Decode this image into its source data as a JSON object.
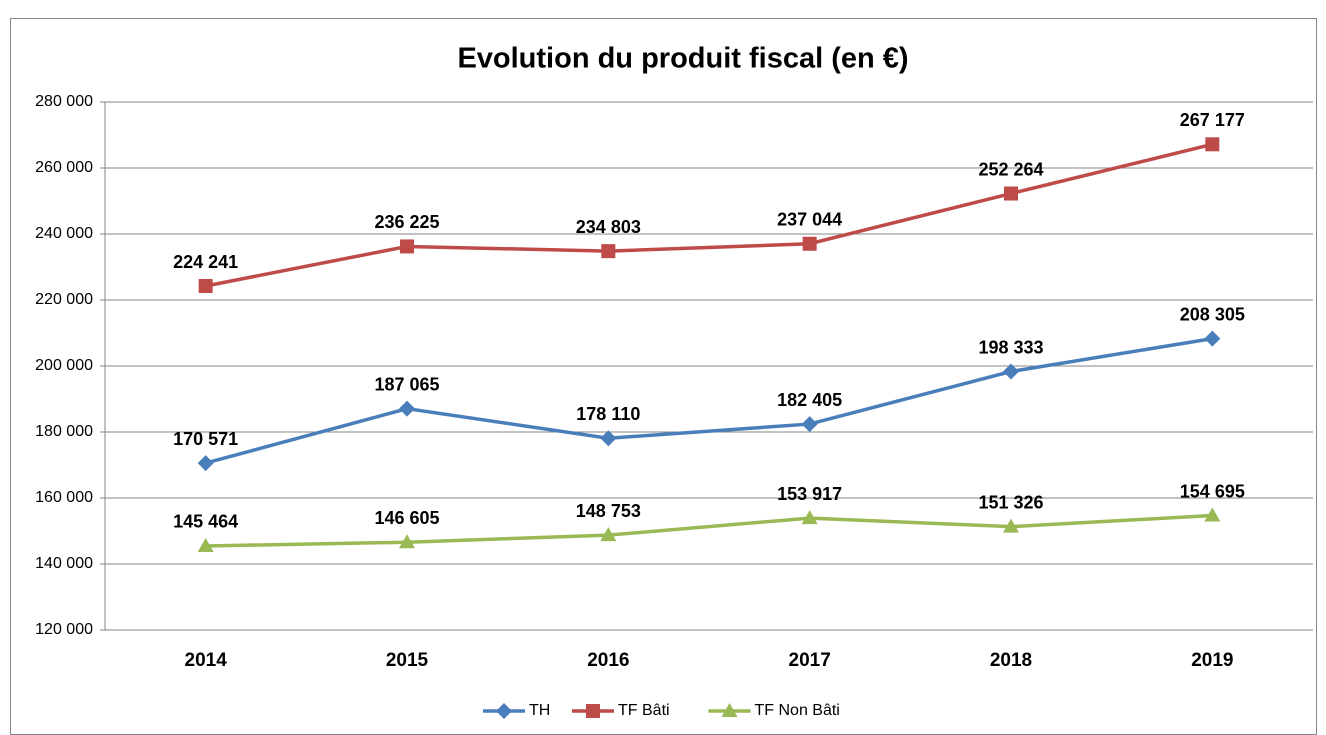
{
  "chart_data": {
    "type": "line",
    "title": "Evolution du produit fiscal (en €)",
    "categories": [
      "2014",
      "2015",
      "2016",
      "2017",
      "2018",
      "2019"
    ],
    "series": [
      {
        "name": "TH",
        "color": "#4a7ebb",
        "marker": "diamond",
        "values": [
          170571,
          187065,
          178110,
          182405,
          198333,
          208305
        ],
        "value_labels": [
          "170 571",
          "187 065",
          "178 110",
          "182 405",
          "198 333",
          "208 305"
        ]
      },
      {
        "name": "TF Bâti",
        "color": "#be4b48",
        "marker": "square",
        "values": [
          224241,
          236225,
          234803,
          237044,
          252264,
          267177
        ],
        "value_labels": [
          "224 241",
          "236 225",
          "234 803",
          "237 044",
          "252 264",
          "267 177"
        ]
      },
      {
        "name": "TF Non Bâti",
        "color": "#98b954",
        "marker": "triangle",
        "values": [
          145464,
          146605,
          148753,
          153917,
          151326,
          154695
        ],
        "value_labels": [
          "145 464",
          "146 605",
          "148 753",
          "153 917",
          "151 326",
          "154 695"
        ]
      }
    ],
    "ylim": [
      120000,
      280000
    ],
    "yticks": [
      {
        "value": 120000,
        "label": "120 000"
      },
      {
        "value": 140000,
        "label": "140 000"
      },
      {
        "value": 160000,
        "label": "160 000"
      },
      {
        "value": 180000,
        "label": "180 000"
      },
      {
        "value": 200000,
        "label": "200 000"
      },
      {
        "value": 220000,
        "label": "220 000"
      },
      {
        "value": 240000,
        "label": "240 000"
      },
      {
        "value": 260000,
        "label": "260 000"
      },
      {
        "value": 280000,
        "label": "280 000"
      }
    ],
    "grid": true,
    "legend": "bottom"
  }
}
